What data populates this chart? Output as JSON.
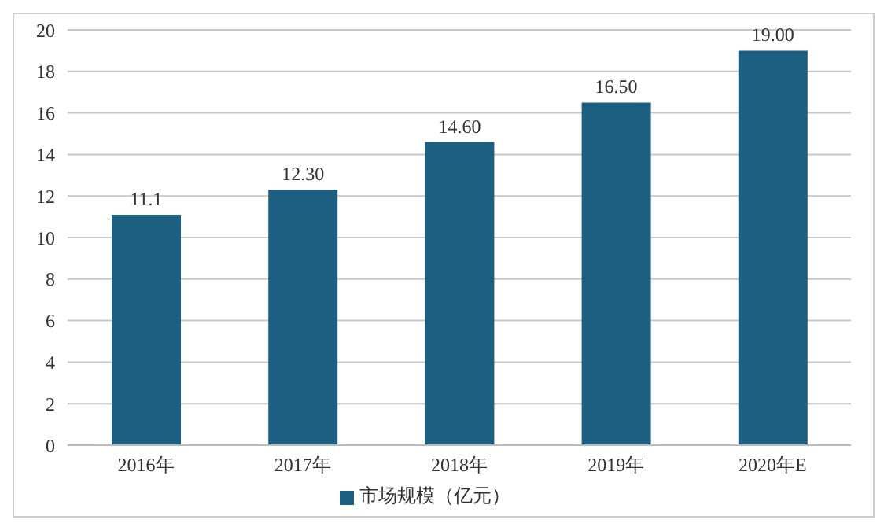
{
  "chart_data": {
    "type": "bar",
    "categories": [
      "2016年",
      "2017年",
      "2018年",
      "2019年",
      "2020年E"
    ],
    "series": [
      {
        "name": "市场规模（亿元）",
        "color": "#1d5f80",
        "values": [
          11.1,
          12.3,
          14.6,
          16.5,
          19.0
        ],
        "value_labels": [
          "11.1",
          "12.30",
          "14.60",
          "16.50",
          "19.00"
        ]
      }
    ],
    "ylim": [
      0,
      20
    ],
    "yticks": [
      0,
      2,
      4,
      6,
      8,
      10,
      12,
      14,
      16,
      18,
      20
    ],
    "grid": "y",
    "legend": "bottom"
  }
}
